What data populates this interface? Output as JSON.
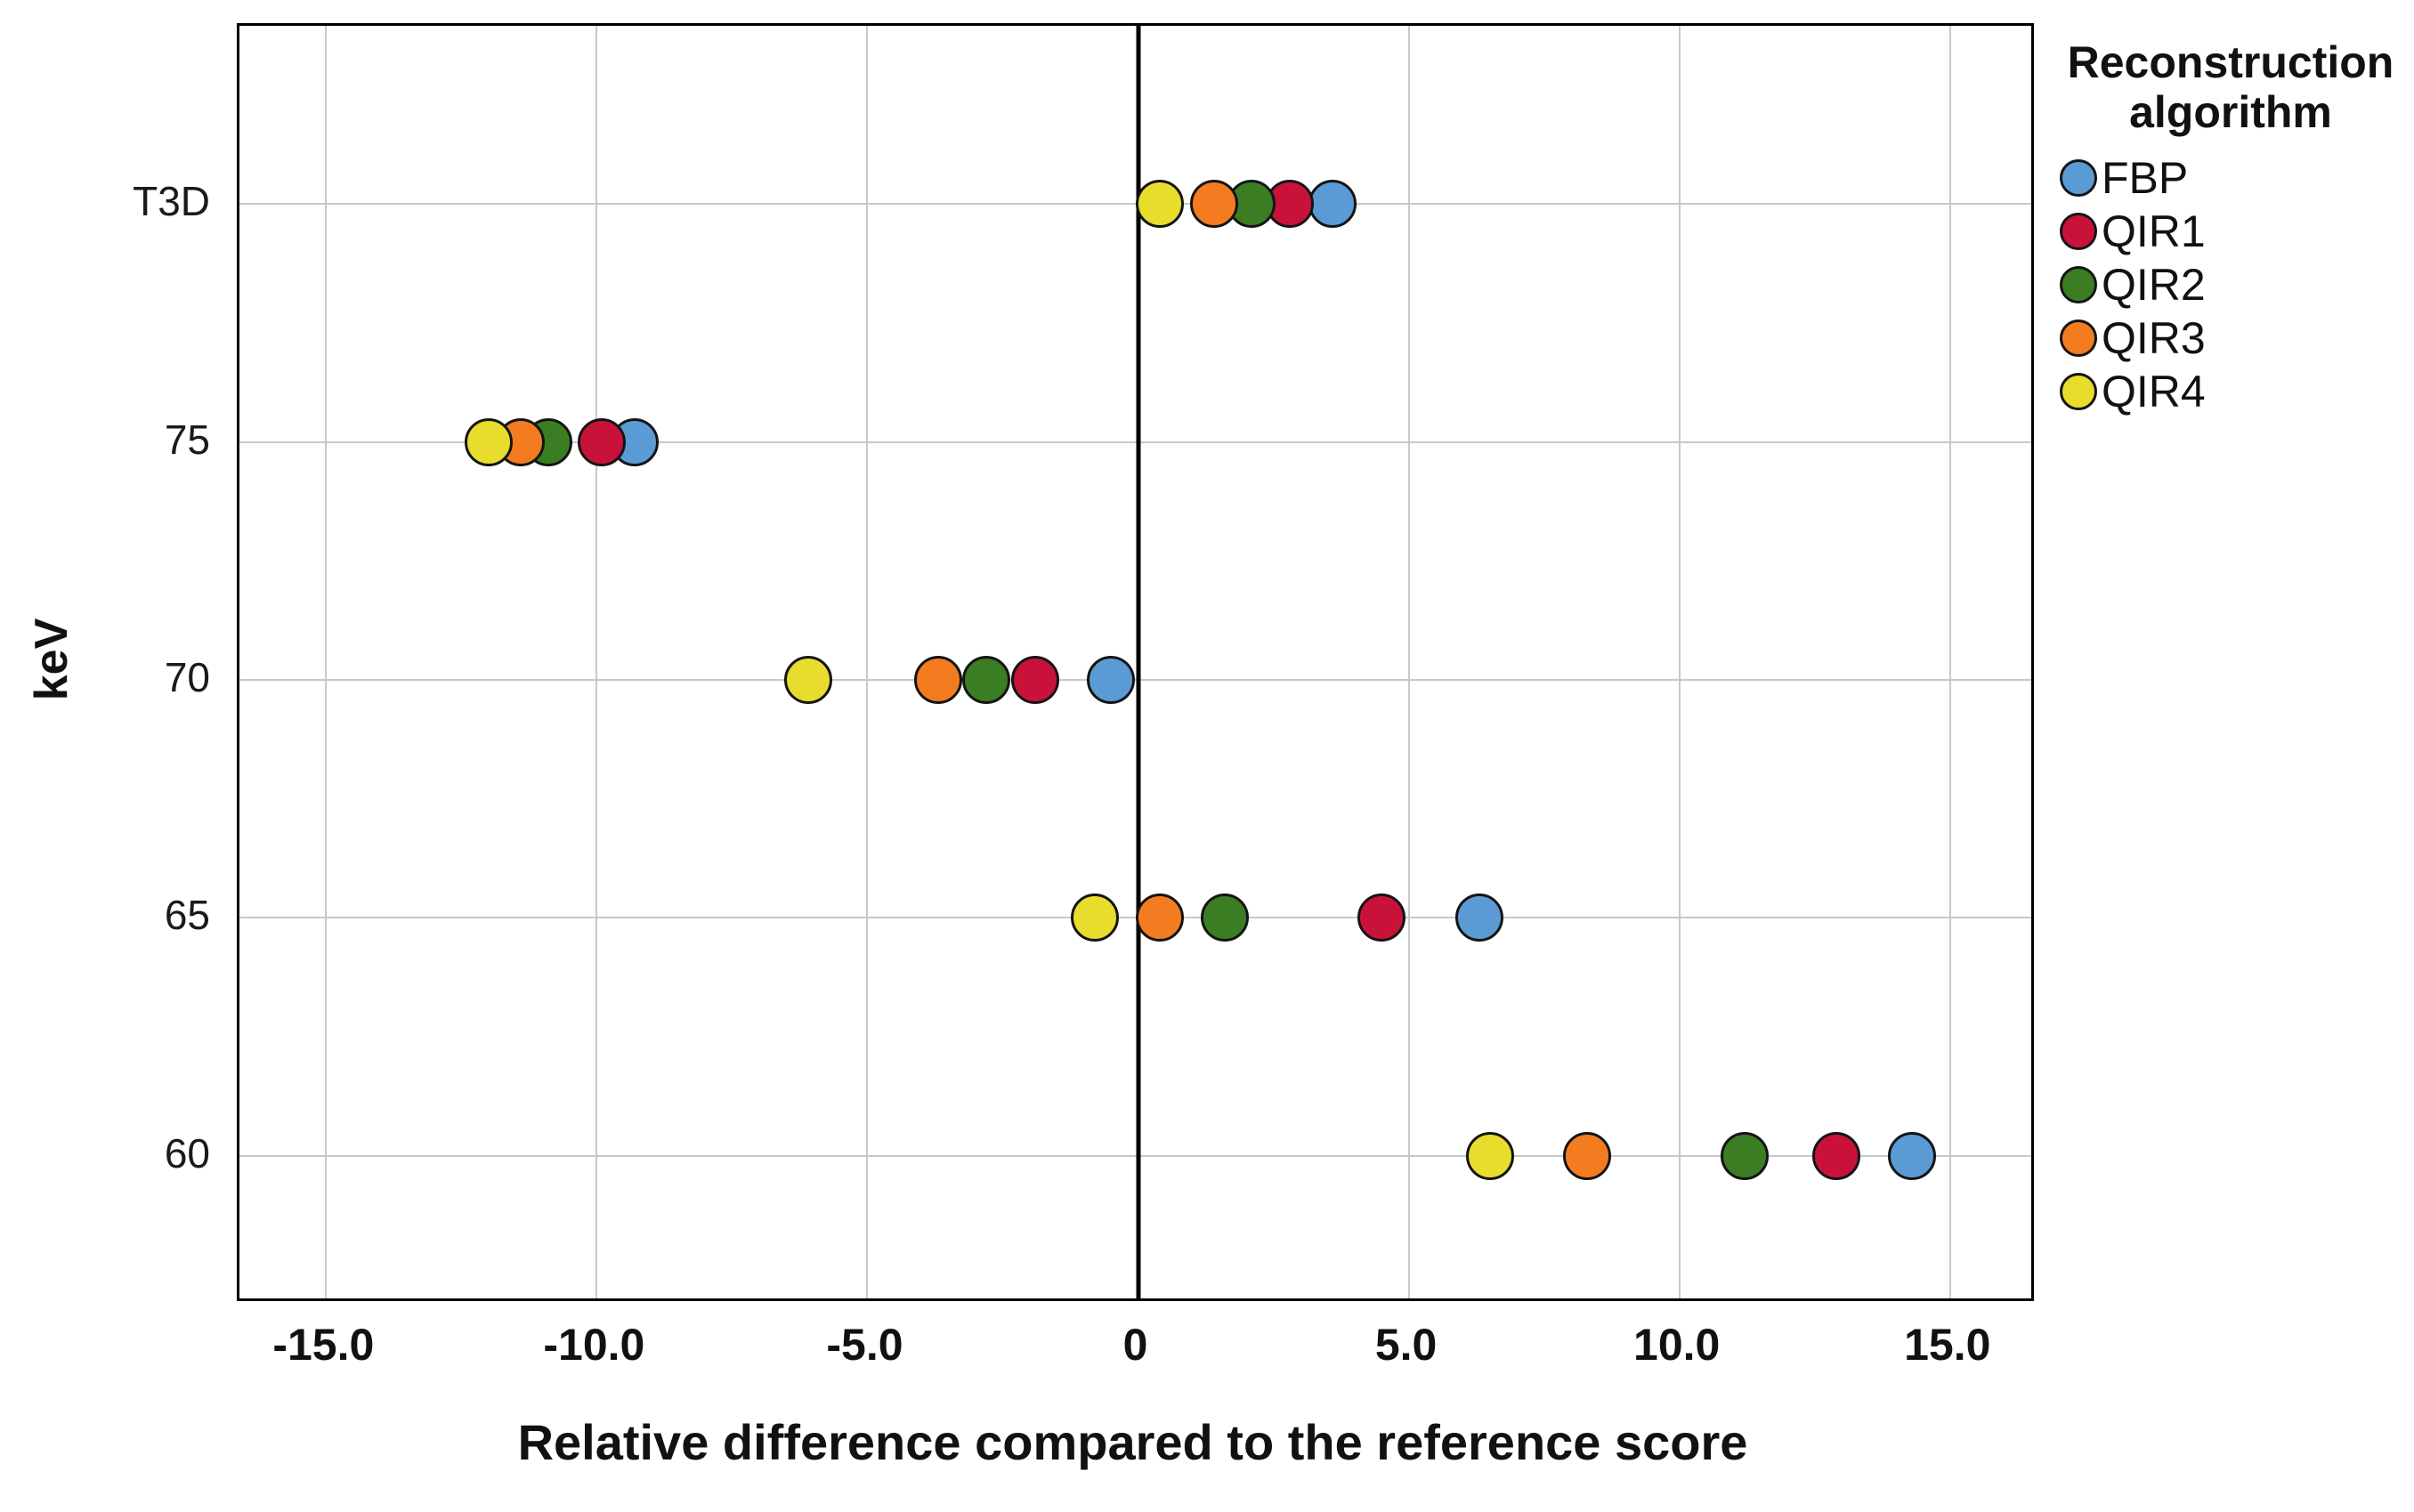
{
  "chart_data": {
    "type": "scatter",
    "xlabel": "Relative difference compared to the reference score",
    "ylabel": "keV",
    "legend_title": "Reconstruction algorithm",
    "legend_position": "top-right",
    "categories": [
      "T3D",
      "75",
      "70",
      "65",
      "60"
    ],
    "x_ticks": [
      -15.0,
      -10.0,
      -5.0,
      0,
      5.0,
      10.0,
      15.0
    ],
    "x_tick_labels": [
      "-15.0",
      "-10.0",
      "-5.0",
      "0",
      "5.0",
      "10.0",
      "15.0"
    ],
    "xlim": [
      -16.6,
      16.5
    ],
    "grid": true,
    "zero_line": true,
    "series": [
      {
        "name": "FBP",
        "color": "#5B9BD5",
        "values": [
          3.6,
          -9.3,
          -0.5,
          6.3,
          14.3
        ]
      },
      {
        "name": "QIR1",
        "color": "#C9123A",
        "values": [
          2.8,
          -9.9,
          -1.9,
          4.5,
          12.9
        ]
      },
      {
        "name": "QIR2",
        "color": "#3B7D23",
        "values": [
          2.1,
          -10.9,
          -2.8,
          1.6,
          11.2
        ]
      },
      {
        "name": "QIR3",
        "color": "#F47C20",
        "values": [
          1.4,
          -11.4,
          -3.7,
          0.4,
          8.3
        ]
      },
      {
        "name": "QIR4",
        "color": "#E8DC2C",
        "values": [
          0.4,
          -12.0,
          -6.1,
          -0.8,
          6.5
        ]
      }
    ]
  }
}
